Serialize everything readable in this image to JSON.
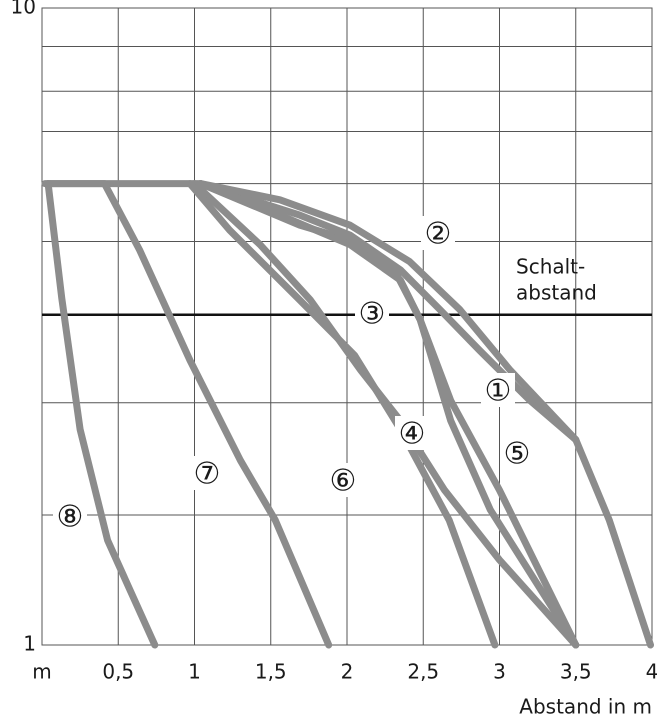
{
  "chart_data": {
    "type": "line",
    "log_y": true,
    "grid": true,
    "color": "#8c8c8c",
    "xlabel": "Abstand in m",
    "xlim": [
      0,
      4
    ],
    "ylim": [
      1,
      10
    ],
    "xticks": [
      {
        "value": 0,
        "label": "m"
      },
      {
        "value": 0.5,
        "label": "0,5"
      },
      1,
      {
        "value": 1.5,
        "label": "1,5"
      },
      2,
      {
        "value": 2.5,
        "label": "2,5"
      },
      3,
      {
        "value": 3.5,
        "label": "3,5"
      },
      4
    ],
    "yticks": [
      1,
      10
    ],
    "y_minor_grid": [
      1.6,
      2.4,
      3.3,
      4.3,
      5.3,
      6.4,
      7.4,
      8.7
    ],
    "reference_line": {
      "value": 3.3,
      "label": [
        "Schalt-",
        "abstand"
      ]
    },
    "series": [
      {
        "name": "①",
        "x": [
          1.04,
          1.69,
          2.02,
          2.35,
          2.61,
          2.87,
          3.2,
          3.5,
          3.72,
          3.99
        ],
        "values": [
          5.3,
          4.73,
          4.4,
          3.88,
          3.36,
          2.9,
          2.42,
          2.1,
          1.57,
          1
        ]
      },
      {
        "name": "②",
        "x": [
          0.02,
          1.04,
          1.56,
          2.02,
          2.41,
          2.74,
          3.07,
          3.5
        ],
        "values": [
          5.3,
          5.3,
          5.0,
          4.56,
          4.0,
          3.36,
          2.7,
          2.1
        ]
      },
      {
        "name": "③",
        "x": [
          1.04,
          1.69,
          2.02,
          2.31,
          2.48,
          2.68,
          3.0,
          3.5
        ],
        "values": [
          5.3,
          4.56,
          4.32,
          3.88,
          3.24,
          2.42,
          1.75,
          1
        ]
      },
      {
        "name": "④",
        "x": [
          1.0,
          1.43,
          1.76,
          2.09,
          2.35,
          2.64,
          3.0,
          3.5
        ],
        "values": [
          5.3,
          4.25,
          3.48,
          2.7,
          2.25,
          1.75,
          1.36,
          1
        ]
      },
      {
        "name": "⑤",
        "x": [
          1.04,
          1.56,
          2.02,
          2.35,
          2.48,
          2.68,
          2.94,
          3.5
        ],
        "values": [
          5.3,
          4.73,
          4.25,
          3.74,
          3.24,
          2.25,
          1.63,
          1
        ]
      },
      {
        "name": "⑥",
        "x": [
          0.97,
          1.23,
          1.69,
          2.05,
          2.35,
          2.67,
          2.97
        ],
        "values": [
          5.3,
          4.48,
          3.48,
          2.85,
          2.18,
          1.57,
          1
        ]
      },
      {
        "name": "⑦",
        "x": [
          0.04,
          0.41,
          0.64,
          0.97,
          1.3,
          1.53,
          1.88
        ],
        "values": [
          5.3,
          5.3,
          4.17,
          2.8,
          1.95,
          1.57,
          1
        ]
      },
      {
        "name": "⑧",
        "x": [
          0.04,
          0.13,
          0.25,
          0.43,
          0.74
        ],
        "values": [
          5.3,
          3.5,
          2.18,
          1.46,
          1
        ]
      }
    ]
  }
}
